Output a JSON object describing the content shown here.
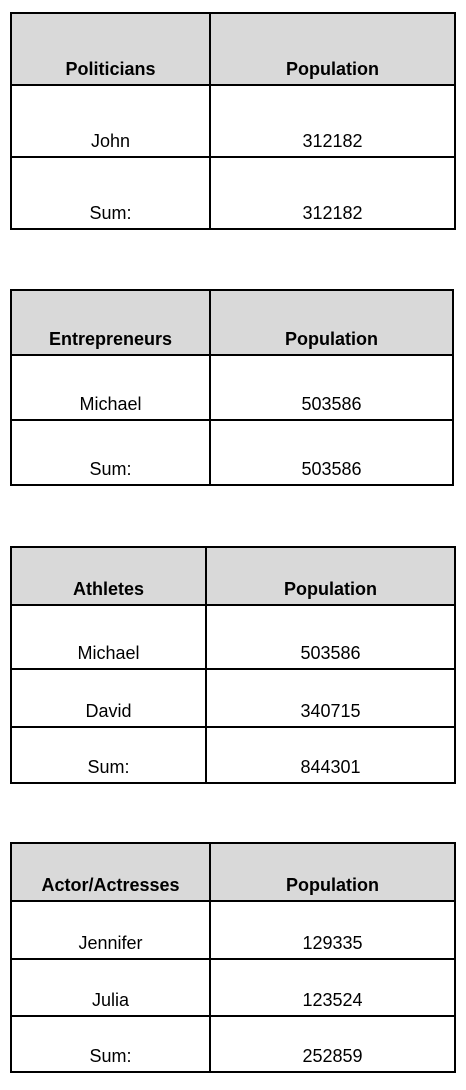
{
  "tables": [
    {
      "headers": [
        "Politicians",
        "Population"
      ],
      "rows": [
        [
          "John",
          "312182"
        ],
        [
          "Sum:",
          "312182"
        ]
      ]
    },
    {
      "headers": [
        "Entrepreneurs",
        "Population"
      ],
      "rows": [
        [
          "Michael",
          "503586"
        ],
        [
          "Sum:",
          "503586"
        ]
      ]
    },
    {
      "headers": [
        "Athletes",
        "Population"
      ],
      "rows": [
        [
          "Michael",
          "503586"
        ],
        [
          "David",
          "340715"
        ],
        [
          "Sum:",
          "844301"
        ]
      ]
    },
    {
      "headers": [
        "Actor/Actresses",
        "Population"
      ],
      "rows": [
        [
          "Jennifer",
          "129335"
        ],
        [
          "Julia",
          "123524"
        ],
        [
          "Sum:",
          "252859"
        ]
      ]
    }
  ],
  "colors": {
    "header_background": "#d9d9d9",
    "border": "#000000",
    "text": "#000000"
  }
}
